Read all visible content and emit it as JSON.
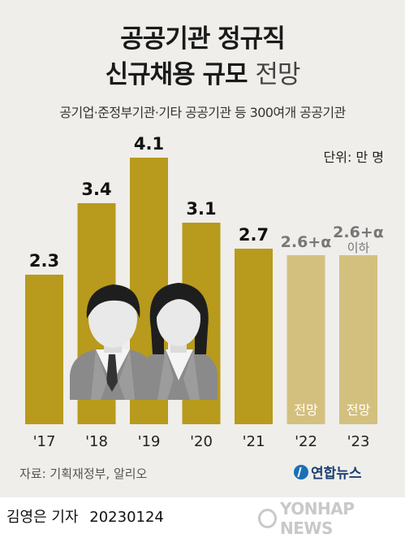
{
  "title_line1": "공공기관 정규직",
  "title_line2_bold": "신규채용 규모",
  "title_line2_light": "전망",
  "subtitle": "공기업·준정부기관·기타 공공기관 등 300여개 공공기관",
  "unit_label": "단위: 만 명",
  "source": "자료: 기획재정부, 알리오",
  "brand": "연합뉴스",
  "byline_name": "김영은 기자",
  "byline_date": "20230124",
  "watermark": "YONHAP NEWS",
  "colors": {
    "actual_bar": "#b89a1c",
    "forecast_bar": "#d4c07e",
    "forecast_text": "#ffffff",
    "forecast_value_text": "#777777",
    "value_text": "#111111"
  },
  "chart_data": {
    "type": "bar",
    "categories": [
      "'17",
      "'18",
      "'19",
      "'20",
      "'21",
      "'22",
      "'23"
    ],
    "values": [
      2.3,
      3.4,
      4.1,
      3.1,
      2.7,
      2.6,
      2.6
    ],
    "value_labels": [
      "2.3",
      "3.4",
      "4.1",
      "3.1",
      "2.7",
      "2.6+α",
      "2.6+α"
    ],
    "value_sublabels": [
      "",
      "",
      "",
      "",
      "",
      "",
      "이하"
    ],
    "forecast": [
      false,
      false,
      false,
      false,
      false,
      true,
      true
    ],
    "forecast_tag": "전망",
    "ylim": [
      0,
      4.3
    ],
    "title": "",
    "xlabel": "",
    "ylabel": ""
  }
}
